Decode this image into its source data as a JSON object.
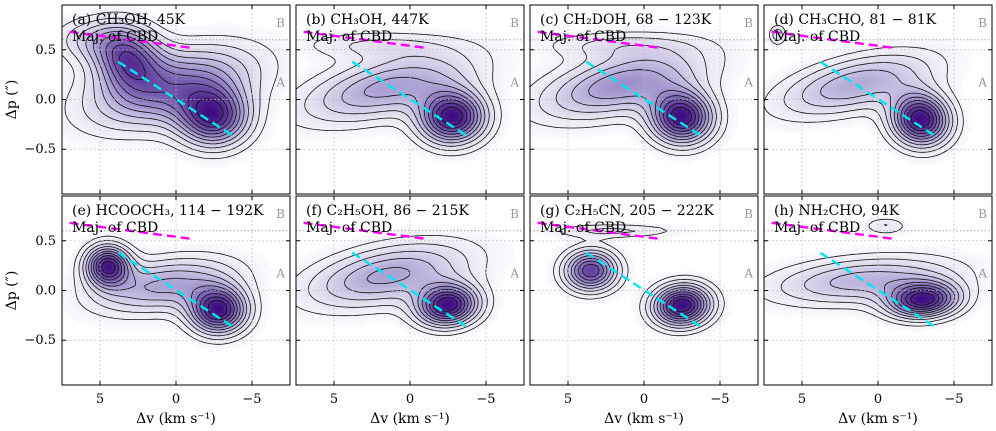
{
  "chart_data": {
    "type": "contour",
    "xlabel": "Δv (km s⁻¹)",
    "ylabel": "Δp (″)",
    "xlim": [
      7.5,
      -7.5
    ],
    "ylim": [
      0.95,
      -0.95
    ],
    "xticks": [
      5,
      0,
      -5
    ],
    "xtick_labels": [
      "5",
      "0",
      "−5"
    ],
    "yticks": [
      -0.5,
      0.0,
      0.5
    ],
    "ytick_labels": [
      "−0.5",
      "0.0",
      "0.5"
    ],
    "reference_lines": {
      "dotted_x": [
        5,
        0,
        -5
      ],
      "dotted_y": [
        -0.5,
        0.0,
        0.5
      ],
      "line_A_y": 0.0,
      "line_B_y": 0.6
    },
    "region_labels": [
      "A",
      "B"
    ],
    "fit_lines": [
      {
        "name": "A-branch fit",
        "color": "#00e5ee",
        "points": [
          [
            3.8,
            0.38
          ],
          [
            -3.9,
            -0.38
          ]
        ]
      },
      {
        "name": "B-branch fit",
        "color": "#ff00ff",
        "points": [
          [
            7.0,
            0.68
          ],
          [
            -1.0,
            0.52
          ]
        ]
      }
    ],
    "colormap": [
      "#ffffff",
      "#ece9f4",
      "#cfc9e6",
      "#a79cd1",
      "#7e67b5",
      "#5a3597",
      "#3f0c80"
    ],
    "panels": [
      {
        "label": "(a) CH₃OH, 45K",
        "note": "Maj. of CBD",
        "components": [
          {
            "x": 3.2,
            "y": 0.42,
            "sx": 1.5,
            "sy": 0.22,
            "amp": 0.8,
            "rot": -0.3
          },
          {
            "x": -2.5,
            "y": -0.18,
            "sx": 1.6,
            "sy": 0.2,
            "amp": 1.0,
            "rot": -0.4
          },
          {
            "x": 0.3,
            "y": 0.12,
            "sx": 3.8,
            "sy": 0.24,
            "amp": 0.75,
            "rot": -0.32
          },
          {
            "x": 5.5,
            "y": 0.6,
            "sx": 1.8,
            "sy": 0.15,
            "amp": 0.3,
            "rot": 0
          }
        ]
      },
      {
        "label": "(b) CH₃OH, 447K",
        "note": "Maj. of CBD",
        "components": [
          {
            "x": -2.8,
            "y": -0.18,
            "sx": 1.5,
            "sy": 0.18,
            "amp": 1.0,
            "rot": -0.3
          },
          {
            "x": 1.5,
            "y": 0.12,
            "sx": 4.0,
            "sy": 0.2,
            "amp": 0.5,
            "rot": -0.3
          },
          {
            "x": 2.5,
            "y": 0.55,
            "sx": 3.5,
            "sy": 0.1,
            "amp": 0.18,
            "rot": 0
          }
        ]
      },
      {
        "label": "(c) CH₂DOH, 68 − 123K",
        "note": "Maj. of CBD",
        "components": [
          {
            "x": -2.5,
            "y": -0.18,
            "sx": 1.4,
            "sy": 0.18,
            "amp": 1.0,
            "rot": -0.3
          },
          {
            "x": 1.5,
            "y": 0.15,
            "sx": 3.8,
            "sy": 0.2,
            "amp": 0.55,
            "rot": -0.3
          },
          {
            "x": 2.0,
            "y": 0.55,
            "sx": 3.5,
            "sy": 0.1,
            "amp": 0.18,
            "rot": 0
          }
        ]
      },
      {
        "label": "(d) CH₃CHO, 81 − 81K",
        "note": "Maj. of CBD",
        "components": [
          {
            "x": -2.8,
            "y": -0.2,
            "sx": 1.3,
            "sy": 0.18,
            "amp": 1.0,
            "rot": -0.3
          },
          {
            "x": 1.5,
            "y": 0.15,
            "sx": 3.6,
            "sy": 0.18,
            "amp": 0.45,
            "rot": -0.3
          },
          {
            "x": 6.6,
            "y": 0.65,
            "sx": 0.4,
            "sy": 0.07,
            "amp": 0.25,
            "rot": 0
          }
        ]
      },
      {
        "label": "(e) HCOOCH₃, 114 − 192K",
        "note": "Maj. of CBD",
        "components": [
          {
            "x": 4.5,
            "y": 0.25,
            "sx": 1.0,
            "sy": 0.14,
            "amp": 0.95,
            "rot": 0
          },
          {
            "x": -2.8,
            "y": -0.2,
            "sx": 1.3,
            "sy": 0.16,
            "amp": 1.0,
            "rot": -0.2
          },
          {
            "x": 0.8,
            "y": 0.05,
            "sx": 3.2,
            "sy": 0.18,
            "amp": 0.5,
            "rot": -0.2
          }
        ]
      },
      {
        "label": "(f) C₂H₅OH, 86 − 215K",
        "note": "Maj. of CBD",
        "components": [
          {
            "x": -2.5,
            "y": -0.15,
            "sx": 1.4,
            "sy": 0.14,
            "amp": 1.0,
            "rot": -0.2
          },
          {
            "x": 1.5,
            "y": 0.15,
            "sx": 3.8,
            "sy": 0.2,
            "amp": 0.5,
            "rot": -0.25
          }
        ]
      },
      {
        "label": "(g) C₂H₅CN, 205 − 222K",
        "note": "Maj. of CBD",
        "components": [
          {
            "x": -2.5,
            "y": -0.15,
            "sx": 1.3,
            "sy": 0.14,
            "amp": 1.0,
            "rot": -0.2
          },
          {
            "x": 3.5,
            "y": 0.2,
            "sx": 1.2,
            "sy": 0.14,
            "amp": 0.8,
            "rot": -0.1
          },
          {
            "x": 2.0,
            "y": 0.6,
            "sx": 3.0,
            "sy": 0.05,
            "amp": 0.2,
            "rot": 0
          }
        ]
      },
      {
        "label": "(h) NH₂CHO, 94K",
        "note": "Maj. of CBD",
        "components": [
          {
            "x": -3.0,
            "y": -0.1,
            "sx": 1.6,
            "sy": 0.12,
            "amp": 1.0,
            "rot": -0.1
          },
          {
            "x": 1.0,
            "y": 0.1,
            "sx": 4.2,
            "sy": 0.16,
            "amp": 0.45,
            "rot": -0.1
          },
          {
            "x": -0.5,
            "y": 0.65,
            "sx": 1.0,
            "sy": 0.06,
            "amp": 0.2,
            "rot": 0
          }
        ]
      }
    ]
  }
}
